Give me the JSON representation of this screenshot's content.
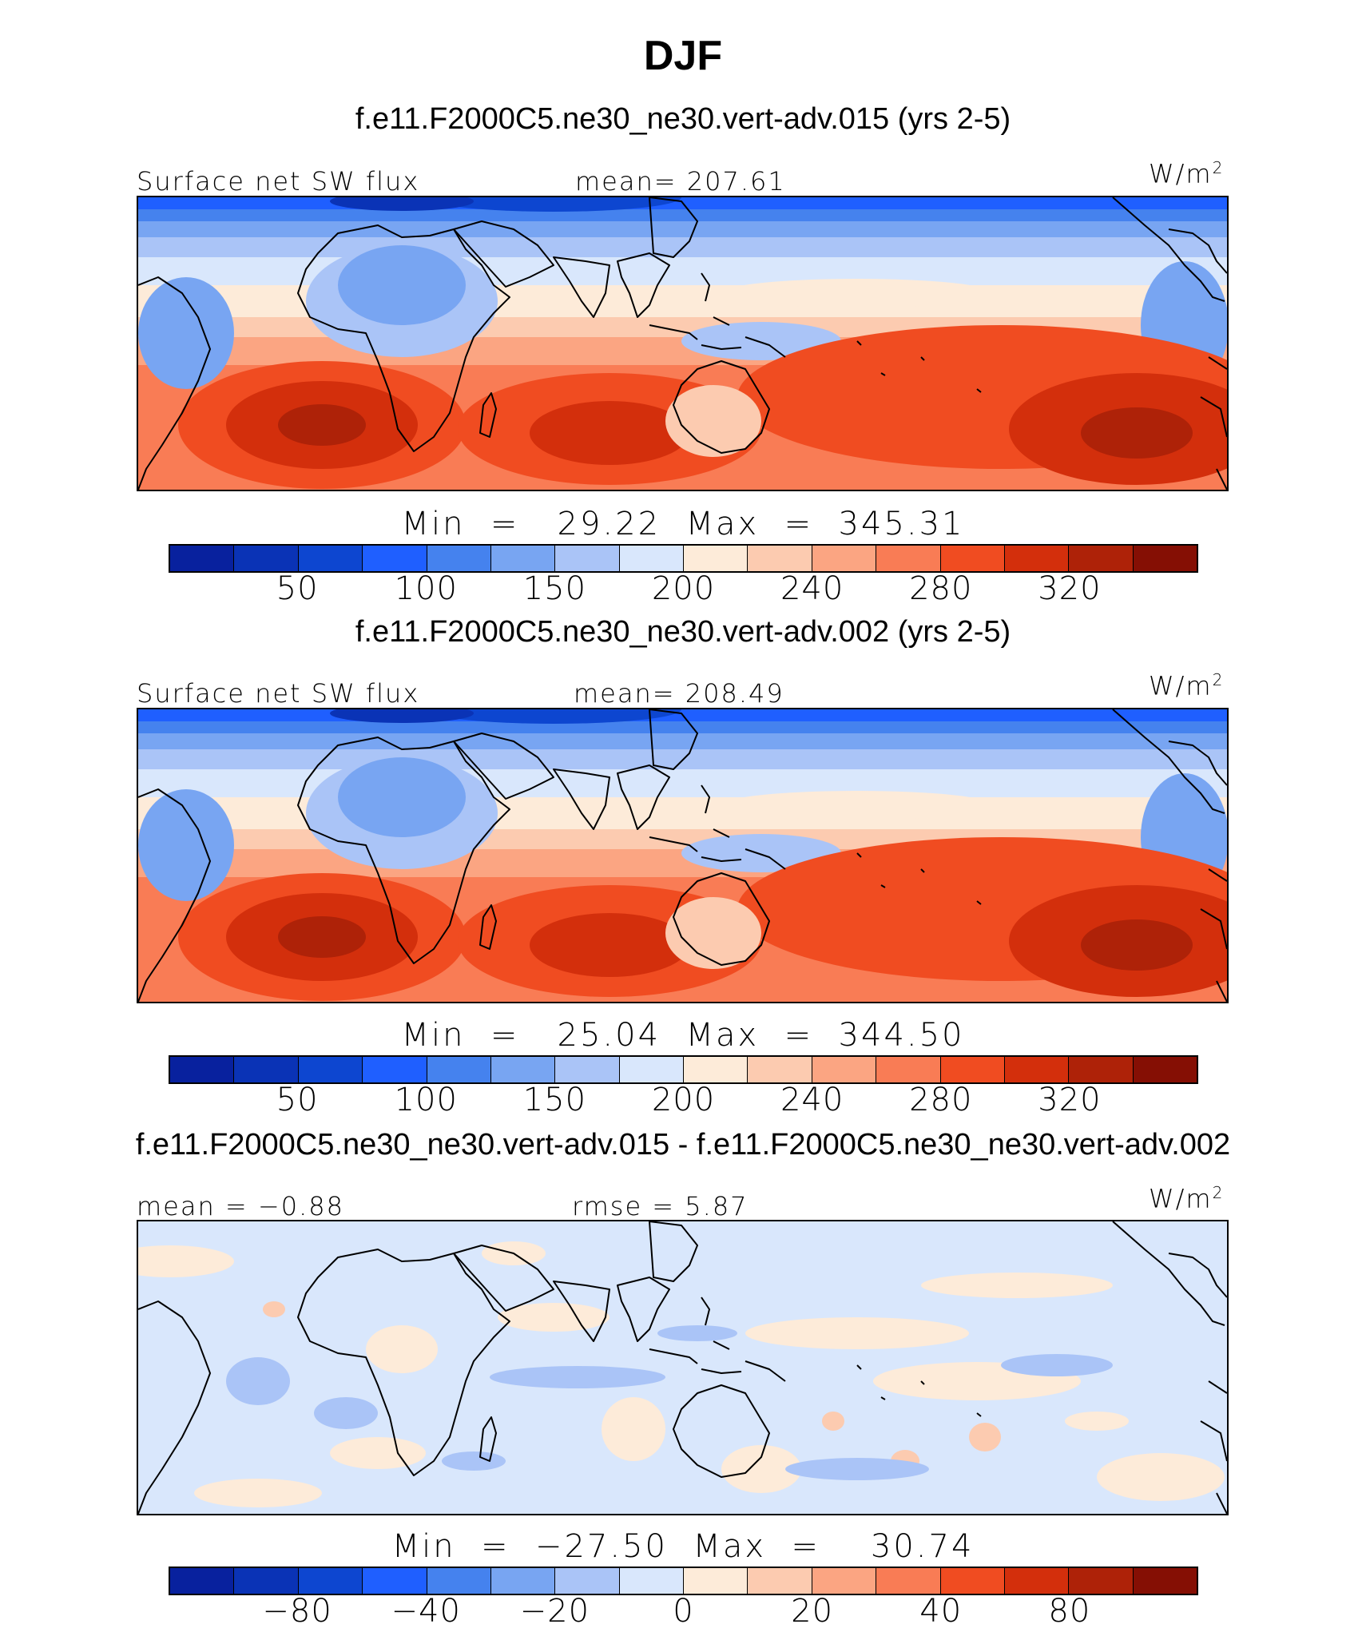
{
  "title": "DJF",
  "colors": {
    "palette": [
      "#08219e",
      "#0a33b6",
      "#0d46d0",
      "#1f5fff",
      "#4582ee",
      "#78a5f2",
      "#aac4f7",
      "#d9e7fc",
      "#fdebd9",
      "#fccbb0",
      "#fba582",
      "#f97c55",
      "#f04c21",
      "#d32f0c",
      "#ae2208",
      "#850f04"
    ],
    "land_outline": "#000000"
  },
  "panels": [
    {
      "case": "f.e11.F2000C5.ne30_ne30.vert-adv.015 (yrs 2-5)",
      "left_label": "Surface net SW flux",
      "center_label": "mean=  207.61",
      "units": "W/m",
      "units_sup": "2",
      "minmax": "Min  =   29.22  Max  =  345.31",
      "ticks": [
        "50",
        "100",
        "150",
        "200",
        "240",
        "280",
        "320"
      ],
      "field": "full"
    },
    {
      "case": "f.e11.F2000C5.ne30_ne30.vert-adv.002 (yrs 2-5)",
      "left_label": "Surface net SW flux",
      "center_label": "mean=  208.49",
      "units": "W/m",
      "units_sup": "2",
      "minmax": "Min  =   25.04  Max  =  344.50",
      "ticks": [
        "50",
        "100",
        "150",
        "200",
        "240",
        "280",
        "320"
      ],
      "field": "full"
    },
    {
      "case": "f.e11.F2000C5.ne30_ne30.vert-adv.015 - f.e11.F2000C5.ne30_ne30.vert-adv.002",
      "left_label": "mean  =   −0.88",
      "center_label": "rmse  =      5.87",
      "units": "W/m",
      "units_sup": "2",
      "minmax": "Min  =  −27.50  Max  =    30.74",
      "ticks": [
        "−80",
        "−40",
        "−20",
        "0",
        "20",
        "40",
        "80"
      ],
      "field": "diff"
    }
  ]
}
